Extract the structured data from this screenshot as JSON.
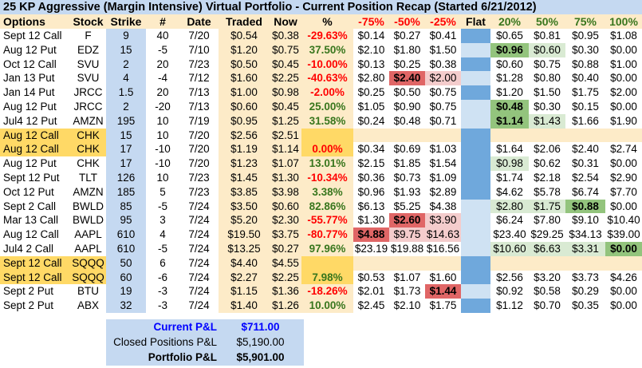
{
  "title": "25 KP Aggressive (Margin Intensive) Virtual Portfolio - Current Position Recap (Started 6/21/2012)",
  "colors": {
    "title_bg": "#c5d9f1",
    "header_bg": "#fdebc8",
    "negative": "#ff0000",
    "positive": "#38761d",
    "flat_dark": "#6fa8dc",
    "flat_light": "#cfe2f3",
    "highlight_orange": "#ffd966",
    "red_strong": "#e06666",
    "red_light": "#f4cccc",
    "green_strong": "#93c47d",
    "green_light": "#d9ead3",
    "current_pl": "#0000ff"
  },
  "headers": [
    "Options",
    "Stock",
    "Strike",
    "#",
    "Date",
    "Traded",
    "Now",
    "%",
    "-75%",
    "-50%",
    "-25%",
    "Flat",
    "20%",
    "50%",
    "75%",
    "100%"
  ],
  "rows": [
    {
      "options": "Sept 12 Call",
      "stock": "F",
      "strike": "9",
      "qty": "40",
      "date": "7/20",
      "traded": "$0.54",
      "now": "$0.38",
      "pct": "-29.63%",
      "pct_sign": "neg",
      "m75": "$0.14",
      "m50": "$0.27",
      "m25": "$0.41",
      "flat": "dark",
      "p20": "$0.65",
      "p50": "$0.81",
      "p75": "$0.95",
      "p100": "$1.08",
      "hl": {}
    },
    {
      "options": "Aug 12 Put",
      "stock": "EDZ",
      "strike": "15",
      "qty": "-5",
      "date": "7/10",
      "traded": "$1.20",
      "now": "$0.75",
      "pct": "37.50%",
      "pct_sign": "pos",
      "m75": "$2.10",
      "m50": "$1.80",
      "m25": "$1.50",
      "flat": "light",
      "p20": "$0.96",
      "p50": "$0.60",
      "p75": "$0.30",
      "p100": "$0.00",
      "hl": {
        "p20": "green-strong",
        "p50": "green-light"
      }
    },
    {
      "options": "Oct 12 Call",
      "stock": "SVU",
      "strike": "2",
      "qty": "20",
      "date": "7/23",
      "traded": "$0.50",
      "now": "$0.45",
      "pct": "-10.00%",
      "pct_sign": "neg",
      "m75": "$0.13",
      "m50": "$0.25",
      "m25": "$0.38",
      "flat": "dark",
      "p20": "$0.60",
      "p50": "$0.75",
      "p75": "$0.88",
      "p100": "$1.00",
      "hl": {}
    },
    {
      "options": "Jan 13 Put",
      "stock": "SVU",
      "strike": "4",
      "qty": "-4",
      "date": "7/12",
      "traded": "$1.60",
      "now": "$2.25",
      "pct": "-40.63%",
      "pct_sign": "neg",
      "m75": "$2.80",
      "m50": "$2.40",
      "m25": "$2.00",
      "flat": "light",
      "p20": "$1.28",
      "p50": "$0.80",
      "p75": "$0.40",
      "p100": "$0.00",
      "hl": {
        "m50": "red-strong",
        "m25": "red-light"
      }
    },
    {
      "options": "Jan 14 Put",
      "stock": "JRCC",
      "strike": "1.5",
      "qty": "20",
      "date": "7/13",
      "traded": "$1.00",
      "now": "$0.98",
      "pct": "-2.00%",
      "pct_sign": "neg",
      "m75": "$0.25",
      "m50": "$0.50",
      "m25": "$0.75",
      "flat": "dark",
      "p20": "$1.20",
      "p50": "$1.50",
      "p75": "$1.75",
      "p100": "$2.00",
      "hl": {}
    },
    {
      "options": "Aug 12 Put",
      "stock": "JRCC",
      "strike": "2",
      "qty": "-20",
      "date": "7/13",
      "traded": "$0.60",
      "now": "$0.45",
      "pct": "25.00%",
      "pct_sign": "pos",
      "m75": "$1.05",
      "m50": "$0.90",
      "m25": "$0.75",
      "flat": "light",
      "p20": "$0.48",
      "p50": "$0.30",
      "p75": "$0.15",
      "p100": "$0.00",
      "hl": {
        "p20": "green-strong"
      }
    },
    {
      "options": "Jul4 12 Put",
      "stock": "AMZN",
      "strike": "195",
      "qty": "10",
      "date": "7/19",
      "traded": "$0.95",
      "now": "$1.25",
      "pct": "31.58%",
      "pct_sign": "pos",
      "m75": "$0.24",
      "m50": "$0.48",
      "m25": "$0.71",
      "flat": "light",
      "p20": "$1.14",
      "p50": "$1.43",
      "p75": "$1.66",
      "p100": "$1.90",
      "hl": {
        "p20": "green-strong",
        "p50": "green-light"
      }
    },
    {
      "options": "Aug 12 Call",
      "stock": "CHK",
      "strike": "15",
      "qty": "10",
      "date": "7/20",
      "traded": "$2.56",
      "now": "$2.51",
      "pct": "",
      "pct_sign": "",
      "m75": "",
      "m50": "",
      "m25": "",
      "flat": "dark",
      "p20": "",
      "p50": "",
      "p75": "",
      "p100": "",
      "hl": {},
      "spread": true,
      "band": true
    },
    {
      "options": "Aug 12 Call",
      "stock": "CHK",
      "strike": "17",
      "qty": "-10",
      "date": "7/20",
      "traded": "$1.19",
      "now": "$1.14",
      "pct": "0.00%",
      "pct_sign": "neg",
      "m75": "$0.34",
      "m50": "$0.69",
      "m25": "$1.03",
      "flat": "dark",
      "p20": "$1.64",
      "p50": "$2.06",
      "p75": "$2.40",
      "p100": "$2.74",
      "hl": {},
      "spread": true
    },
    {
      "options": "Aug 12 Put",
      "stock": "CHK",
      "strike": "17",
      "qty": "-10",
      "date": "7/20",
      "traded": "$1.23",
      "now": "$1.07",
      "pct": "13.01%",
      "pct_sign": "pos",
      "m75": "$2.15",
      "m50": "$1.85",
      "m25": "$1.54",
      "flat": "dark",
      "p20": "$0.98",
      "p50": "$0.62",
      "p75": "$0.31",
      "p100": "$0.00",
      "hl": {
        "p20": "green-light"
      }
    },
    {
      "options": "Sept 12 Put",
      "stock": "TLT",
      "strike": "126",
      "qty": "10",
      "date": "7/23",
      "traded": "$1.45",
      "now": "$1.30",
      "pct": "-10.34%",
      "pct_sign": "neg",
      "m75": "$0.36",
      "m50": "$0.73",
      "m25": "$1.09",
      "flat": "dark",
      "p20": "$1.74",
      "p50": "$2.18",
      "p75": "$2.54",
      "p100": "$2.90",
      "hl": {}
    },
    {
      "options": "Oct 12 Put",
      "stock": "AMZN",
      "strike": "185",
      "qty": "5",
      "date": "7/23",
      "traded": "$3.85",
      "now": "$3.98",
      "pct": "3.38%",
      "pct_sign": "pos",
      "m75": "$0.96",
      "m50": "$1.93",
      "m25": "$2.89",
      "flat": "dark",
      "p20": "$4.62",
      "p50": "$5.78",
      "p75": "$6.74",
      "p100": "$7.70",
      "hl": {}
    },
    {
      "options": "Sept 2 Call",
      "stock": "BWLD",
      "strike": "85",
      "qty": "-5",
      "date": "7/24",
      "traded": "$3.50",
      "now": "$0.60",
      "pct": "82.86%",
      "pct_sign": "pos",
      "m75": "$6.13",
      "m50": "$5.25",
      "m25": "$4.38",
      "flat": "light",
      "p20": "$2.80",
      "p50": "$1.75",
      "p75": "$0.88",
      "p100": "$0.00",
      "hl": {
        "p20": "green-light",
        "p50": "green-light",
        "p75": "green-strong"
      }
    },
    {
      "options": "Mar 13 Call",
      "stock": "BWLD",
      "strike": "95",
      "qty": "3",
      "date": "7/24",
      "traded": "$5.20",
      "now": "$2.30",
      "pct": "-55.77%",
      "pct_sign": "neg",
      "m75": "$1.30",
      "m50": "$2.60",
      "m25": "$3.90",
      "flat": "light",
      "p20": "$6.24",
      "p50": "$7.80",
      "p75": "$9.10",
      "p100": "$10.40",
      "hl": {
        "m50": "red-strong",
        "m25": "red-light"
      }
    },
    {
      "options": "Aug 12 Call",
      "stock": "AAPL",
      "strike": "610",
      "qty": "4",
      "date": "7/24",
      "traded": "$19.50",
      "now": "$3.75",
      "pct": "-80.77%",
      "pct_sign": "neg",
      "m75": "$4.88",
      "m50": "$9.75",
      "m25": "$14.63",
      "flat": "light",
      "p20": "$23.40",
      "p50": "$29.25",
      "p75": "$34.13",
      "p100": "$39.00",
      "hl": {
        "m75": "red-strong",
        "m50": "red-light",
        "m25": "red-light"
      }
    },
    {
      "options": "Jul4 2 Call",
      "stock": "AAPL",
      "strike": "610",
      "qty": "-5",
      "date": "7/24",
      "traded": "$13.25",
      "now": "$0.27",
      "pct": "97.96%",
      "pct_sign": "pos",
      "m75": "$23.19",
      "m50": "$19.88",
      "m25": "$16.56",
      "flat": "light",
      "p20": "$10.60",
      "p50": "$6.63",
      "p75": "$3.31",
      "p100": "$0.00",
      "hl": {
        "p20": "green-light",
        "p50": "green-light",
        "p75": "green-light",
        "p100": "green-strong"
      }
    },
    {
      "options": "Sept 12 Call",
      "stock": "SQQQ",
      "strike": "50",
      "qty": "6",
      "date": "7/24",
      "traded": "$4.40",
      "now": "$4.55",
      "pct": "",
      "pct_sign": "",
      "m75": "",
      "m50": "",
      "m25": "",
      "flat": "dark",
      "p20": "",
      "p50": "",
      "p75": "",
      "p100": "",
      "hl": {},
      "spread": true,
      "band": true
    },
    {
      "options": "Sept 12 Call",
      "stock": "SQQQ",
      "strike": "60",
      "qty": "-6",
      "date": "7/24",
      "traded": "$2.27",
      "now": "$2.25",
      "pct": "7.98%",
      "pct_sign": "pos",
      "m75": "$0.53",
      "m50": "$1.07",
      "m25": "$1.60",
      "flat": "dark",
      "p20": "$2.56",
      "p50": "$3.20",
      "p75": "$3.73",
      "p100": "$4.26",
      "hl": {},
      "spread": true
    },
    {
      "options": "Sept 2 Put",
      "stock": "BTU",
      "strike": "19",
      "qty": "-3",
      "date": "7/24",
      "traded": "$1.15",
      "now": "$1.36",
      "pct": "-18.26%",
      "pct_sign": "neg",
      "m75": "$2.01",
      "m50": "$1.73",
      "m25": "$1.44",
      "flat": "light",
      "p20": "$0.92",
      "p50": "$0.58",
      "p75": "$0.29",
      "p100": "$0.00",
      "hl": {
        "m25": "red-strong"
      }
    },
    {
      "options": "Sept 2 Put",
      "stock": "ABX",
      "strike": "32",
      "qty": "-3",
      "date": "7/24",
      "traded": "$1.40",
      "now": "$1.26",
      "pct": "10.00%",
      "pct_sign": "pos",
      "m75": "$2.45",
      "m50": "$2.10",
      "m25": "$1.75",
      "flat": "dark",
      "p20": "$1.12",
      "p50": "$0.70",
      "p75": "$0.35",
      "p100": "$0.00",
      "hl": {}
    }
  ],
  "summary": {
    "current_label": "Current P&L",
    "current_value": "$711.00",
    "closed_label": "Closed Positions P&L",
    "closed_value": "$5,190.00",
    "portfolio_label": "Portfolio P&L",
    "portfolio_value": "$5,901.00"
  }
}
